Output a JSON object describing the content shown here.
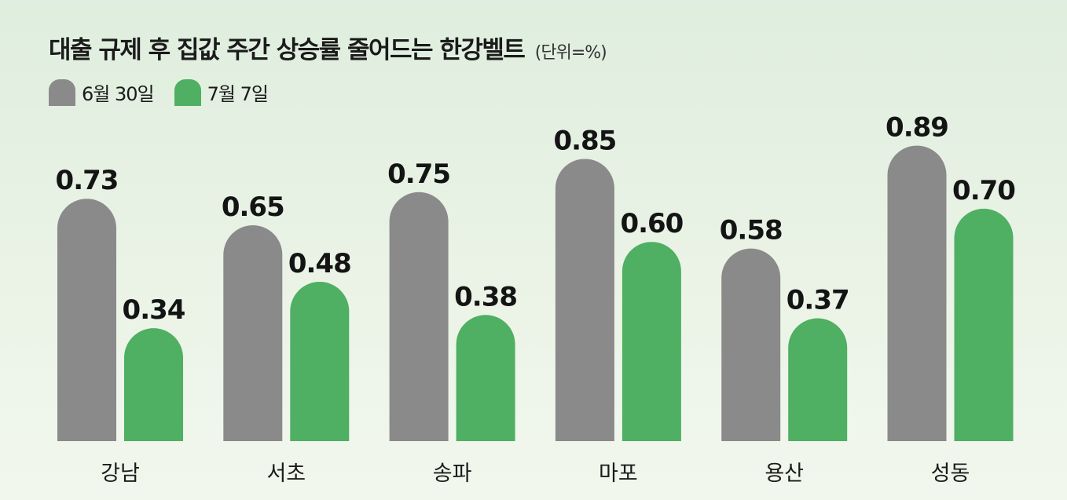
{
  "chart_data": {
    "type": "bar",
    "title": "대출 규제 후 집값 주간 상승률 줄어드는 한강벨트",
    "unit_note": "(단위=%)",
    "xlabel": "",
    "ylabel": "",
    "ylim": [
      0,
      1.0
    ],
    "grid": false,
    "legend_position": "top-left",
    "categories": [
      "강남",
      "서초",
      "송파",
      "마포",
      "용산",
      "성동"
    ],
    "series": [
      {
        "name": "6월 30일",
        "color": "#8a8a8a",
        "values": [
          0.73,
          0.65,
          0.75,
          0.85,
          0.58,
          0.89
        ]
      },
      {
        "name": "7월 7일",
        "color": "#4faf62",
        "values": [
          0.34,
          0.48,
          0.38,
          0.6,
          0.37,
          0.7
        ]
      }
    ]
  }
}
